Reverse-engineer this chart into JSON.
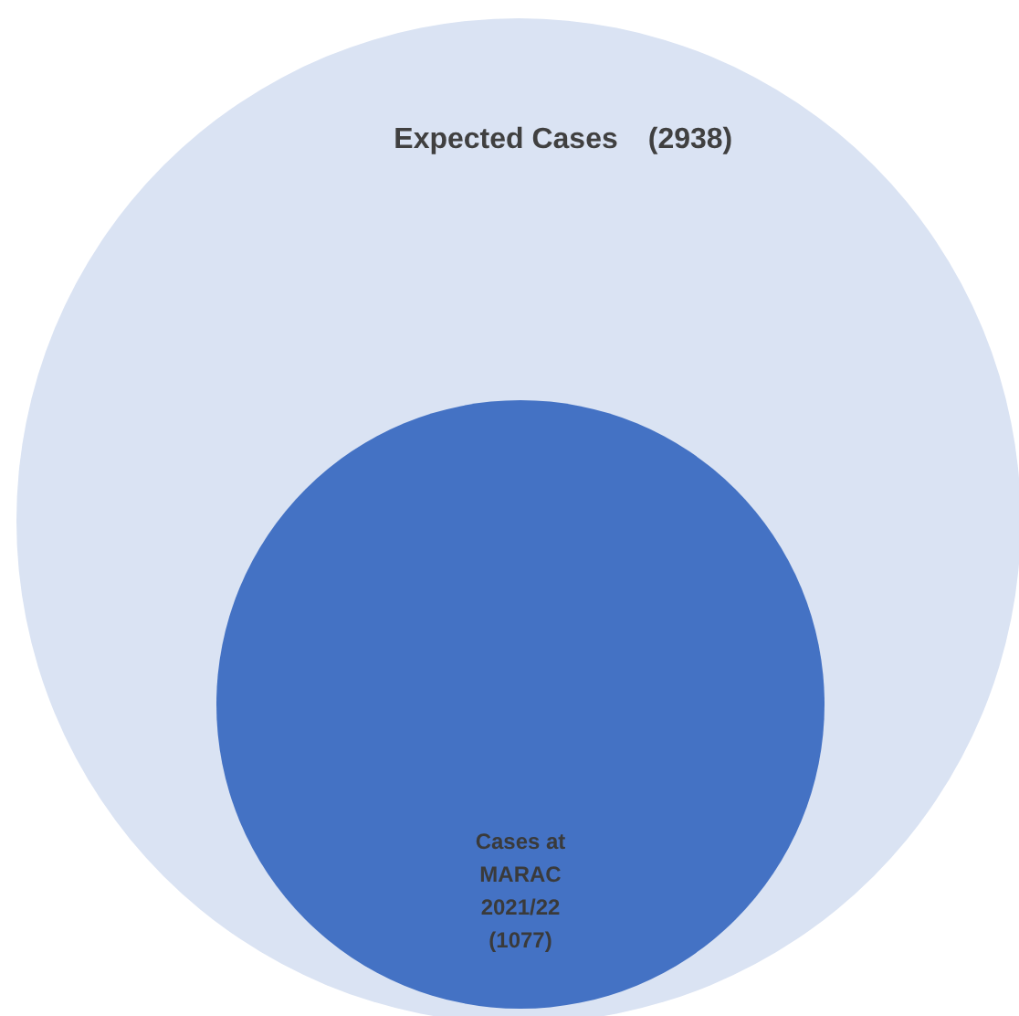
{
  "chart_data": {
    "type": "other",
    "categories": [
      "Expected Cases",
      "Cases at MARAC 2021/22"
    ],
    "values": [
      2938,
      1077
    ],
    "value_labels": [
      "(2938)",
      "(1077)"
    ],
    "colors": [
      "#dae3f3",
      "#4472c4"
    ]
  }
}
